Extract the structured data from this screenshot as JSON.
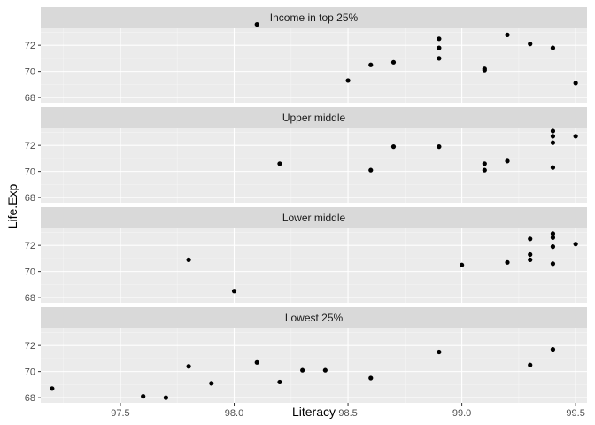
{
  "chart_data": {
    "type": "scatter",
    "xlabel": "Literacy",
    "ylabel": "Life.Exp",
    "xlim": [
      97.15,
      99.55
    ],
    "ylim": [
      67.6,
      73.3
    ],
    "x_ticks": [
      97.5,
      98.0,
      98.5,
      99.0,
      99.5
    ],
    "x_tick_labels": [
      "97.5",
      "98.0",
      "98.5",
      "99.0",
      "99.5"
    ],
    "y_ticks": [
      68,
      70,
      72
    ],
    "y_tick_labels": [
      "68",
      "70",
      "72"
    ],
    "grid": true,
    "point_color": "#000000",
    "panels": [
      {
        "name": "Income in top 25%",
        "points": [
          {
            "x": 98.1,
            "y": 73.6
          },
          {
            "x": 98.5,
            "y": 69.3
          },
          {
            "x": 98.6,
            "y": 70.5
          },
          {
            "x": 98.7,
            "y": 70.7
          },
          {
            "x": 98.9,
            "y": 72.5
          },
          {
            "x": 98.9,
            "y": 71.8
          },
          {
            "x": 98.9,
            "y": 71.0
          },
          {
            "x": 99.1,
            "y": 70.2
          },
          {
            "x": 99.1,
            "y": 70.1
          },
          {
            "x": 99.2,
            "y": 72.8
          },
          {
            "x": 99.3,
            "y": 72.1
          },
          {
            "x": 99.4,
            "y": 71.8
          },
          {
            "x": 99.5,
            "y": 69.1
          }
        ]
      },
      {
        "name": "Upper middle",
        "points": [
          {
            "x": 98.2,
            "y": 70.6
          },
          {
            "x": 98.6,
            "y": 70.1
          },
          {
            "x": 98.7,
            "y": 71.9
          },
          {
            "x": 98.9,
            "y": 71.9
          },
          {
            "x": 99.1,
            "y": 70.6
          },
          {
            "x": 99.1,
            "y": 70.1
          },
          {
            "x": 99.2,
            "y": 70.8
          },
          {
            "x": 99.4,
            "y": 73.1
          },
          {
            "x": 99.4,
            "y": 72.7
          },
          {
            "x": 99.4,
            "y": 72.2
          },
          {
            "x": 99.4,
            "y": 70.3
          },
          {
            "x": 99.5,
            "y": 72.7
          }
        ]
      },
      {
        "name": "Lower middle",
        "points": [
          {
            "x": 97.8,
            "y": 70.9
          },
          {
            "x": 98.0,
            "y": 68.5
          },
          {
            "x": 99.0,
            "y": 70.5
          },
          {
            "x": 99.2,
            "y": 70.7
          },
          {
            "x": 99.3,
            "y": 72.5
          },
          {
            "x": 99.3,
            "y": 71.3
          },
          {
            "x": 99.3,
            "y": 70.9
          },
          {
            "x": 99.4,
            "y": 72.9
          },
          {
            "x": 99.4,
            "y": 72.6
          },
          {
            "x": 99.4,
            "y": 71.9
          },
          {
            "x": 99.4,
            "y": 70.6
          },
          {
            "x": 99.5,
            "y": 72.1
          }
        ]
      },
      {
        "name": "Lowest 25%",
        "points": [
          {
            "x": 97.2,
            "y": 68.7
          },
          {
            "x": 97.6,
            "y": 68.1
          },
          {
            "x": 97.7,
            "y": 68.0
          },
          {
            "x": 97.8,
            "y": 70.4
          },
          {
            "x": 97.9,
            "y": 69.1
          },
          {
            "x": 98.1,
            "y": 70.7
          },
          {
            "x": 98.2,
            "y": 69.2
          },
          {
            "x": 98.3,
            "y": 70.1
          },
          {
            "x": 98.4,
            "y": 70.1
          },
          {
            "x": 98.6,
            "y": 69.5
          },
          {
            "x": 98.9,
            "y": 71.5
          },
          {
            "x": 99.3,
            "y": 70.5
          },
          {
            "x": 99.4,
            "y": 71.7
          }
        ]
      }
    ]
  }
}
